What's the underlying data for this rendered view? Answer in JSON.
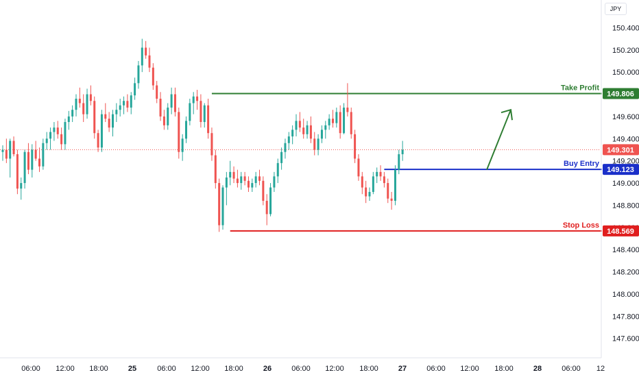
{
  "currency": "JPY",
  "chart_data": {
    "type": "candlestick",
    "title": "",
    "ylim": [
      147.45,
      150.6
    ],
    "yticks": [
      150.4,
      150.2,
      150.0,
      149.8,
      149.6,
      149.4,
      149.2,
      149.0,
      148.8,
      148.6,
      148.4,
      148.2,
      148.0,
      147.8,
      147.6
    ],
    "xticks": [
      "06:00",
      "12:00",
      "18:00",
      "25",
      "06:00",
      "12:00",
      "18:00",
      "26",
      "06:00",
      "12:00",
      "18:00",
      "27",
      "06:00",
      "12:00",
      "18:00",
      "28",
      "06:00",
      "12"
    ],
    "bold_xticks": [
      "25",
      "26",
      "27",
      "28"
    ],
    "current_price": "149.301",
    "current_value": 149.301,
    "levels": [
      {
        "name": "Take Profit",
        "value": 149.806,
        "label": "Take Profit",
        "tag": "149.806",
        "color": "#2e7d32"
      },
      {
        "name": "Buy Entry",
        "value": 149.123,
        "label": "Buy Entry",
        "tag": "149.123",
        "color": "#1a2fc9"
      },
      {
        "name": "Stop Loss",
        "value": 148.569,
        "label": "Stop Loss",
        "tag": "148.569",
        "color": "#e01e1e"
      }
    ],
    "arrow": {
      "direction": "up",
      "from": 149.12,
      "to": 149.66
    },
    "colors": {
      "up": "#26a69a",
      "down": "#ef5350"
    },
    "candles": [
      [
        149.28,
        149.34,
        149.2,
        149.3
      ],
      [
        149.3,
        149.4,
        149.18,
        149.22
      ],
      [
        149.22,
        149.4,
        149.05,
        149.38
      ],
      [
        149.38,
        149.42,
        149.24,
        149.26
      ],
      [
        149.26,
        149.3,
        148.9,
        148.95
      ],
      [
        148.95,
        149.05,
        148.85,
        149.0
      ],
      [
        149.0,
        149.3,
        148.95,
        149.28
      ],
      [
        149.28,
        149.36,
        149.08,
        149.12
      ],
      [
        149.12,
        149.35,
        149.05,
        149.3
      ],
      [
        149.3,
        149.38,
        149.2,
        149.22
      ],
      [
        149.22,
        149.32,
        149.1,
        149.15
      ],
      [
        149.15,
        149.4,
        149.12,
        149.36
      ],
      [
        149.36,
        149.46,
        149.3,
        149.4
      ],
      [
        149.4,
        149.5,
        149.3,
        149.46
      ],
      [
        149.46,
        149.55,
        149.38,
        149.5
      ],
      [
        149.5,
        149.56,
        149.4,
        149.44
      ],
      [
        149.44,
        149.5,
        149.3,
        149.35
      ],
      [
        149.35,
        149.58,
        149.3,
        149.55
      ],
      [
        149.55,
        149.65,
        149.48,
        149.6
      ],
      [
        149.6,
        149.7,
        149.55,
        149.66
      ],
      [
        149.66,
        149.8,
        149.6,
        149.76
      ],
      [
        149.76,
        149.86,
        149.68,
        149.72
      ],
      [
        149.72,
        149.8,
        149.55,
        149.62
      ],
      [
        149.62,
        149.85,
        149.58,
        149.8
      ],
      [
        149.8,
        149.88,
        149.7,
        149.74
      ],
      [
        149.74,
        149.78,
        149.4,
        149.45
      ],
      [
        149.45,
        149.48,
        149.28,
        149.32
      ],
      [
        149.32,
        149.66,
        149.28,
        149.62
      ],
      [
        149.62,
        149.72,
        149.55,
        149.58
      ],
      [
        149.58,
        149.64,
        149.46,
        149.5
      ],
      [
        149.5,
        149.66,
        149.42,
        149.62
      ],
      [
        149.62,
        149.72,
        149.55,
        149.66
      ],
      [
        149.66,
        149.76,
        149.6,
        149.7
      ],
      [
        149.7,
        149.78,
        149.62,
        149.74
      ],
      [
        149.74,
        149.8,
        149.64,
        149.68
      ],
      [
        149.68,
        149.82,
        149.62,
        149.79
      ],
      [
        149.79,
        149.95,
        149.75,
        149.9
      ],
      [
        149.9,
        150.1,
        149.85,
        150.06
      ],
      [
        150.06,
        150.3,
        150.0,
        150.22
      ],
      [
        150.22,
        150.28,
        150.12,
        150.15
      ],
      [
        150.15,
        150.22,
        150.0,
        150.04
      ],
      [
        150.04,
        150.08,
        149.84,
        149.88
      ],
      [
        149.88,
        149.92,
        149.72,
        149.76
      ],
      [
        149.76,
        149.82,
        149.56,
        149.6
      ],
      [
        149.6,
        149.66,
        149.48,
        149.52
      ],
      [
        149.52,
        149.72,
        149.48,
        149.68
      ],
      [
        149.68,
        149.86,
        149.62,
        149.8
      ],
      [
        149.8,
        149.86,
        149.6,
        149.64
      ],
      [
        149.64,
        149.68,
        149.22,
        149.28
      ],
      [
        149.28,
        149.44,
        149.2,
        149.4
      ],
      [
        149.4,
        149.6,
        149.36,
        149.56
      ],
      [
        149.56,
        149.76,
        149.52,
        149.72
      ],
      [
        149.72,
        149.82,
        149.62,
        149.78
      ],
      [
        149.78,
        149.84,
        149.66,
        149.74
      ],
      [
        149.74,
        149.8,
        149.5,
        149.55
      ],
      [
        149.55,
        149.72,
        149.5,
        149.7
      ],
      [
        149.7,
        149.76,
        149.4,
        149.45
      ],
      [
        149.45,
        149.5,
        149.2,
        149.25
      ],
      [
        149.25,
        149.3,
        148.95,
        149.0
      ],
      [
        149.0,
        149.04,
        148.56,
        148.62
      ],
      [
        148.62,
        148.98,
        148.58,
        148.96
      ],
      [
        148.96,
        149.1,
        148.8,
        149.05
      ],
      [
        149.05,
        149.2,
        148.98,
        149.1
      ],
      [
        149.1,
        149.15,
        149.0,
        149.04
      ],
      [
        149.04,
        149.12,
        148.96,
        149.0
      ],
      [
        149.0,
        149.1,
        148.94,
        149.06
      ],
      [
        149.06,
        149.1,
        148.98,
        149.02
      ],
      [
        149.02,
        149.06,
        148.92,
        148.96
      ],
      [
        148.96,
        149.04,
        148.92,
        149.0
      ],
      [
        149.0,
        149.1,
        148.96,
        149.06
      ],
      [
        149.06,
        149.12,
        148.98,
        149.02
      ],
      [
        149.02,
        149.06,
        148.8,
        148.84
      ],
      [
        148.84,
        148.9,
        148.62,
        148.72
      ],
      [
        148.72,
        149.0,
        148.7,
        148.96
      ],
      [
        148.96,
        149.1,
        148.92,
        149.06
      ],
      [
        149.06,
        149.22,
        149.0,
        149.18
      ],
      [
        149.18,
        149.32,
        149.12,
        149.28
      ],
      [
        149.28,
        149.4,
        149.22,
        149.36
      ],
      [
        149.36,
        149.46,
        149.3,
        149.42
      ],
      [
        149.42,
        149.52,
        149.35,
        149.48
      ],
      [
        149.48,
        149.62,
        149.42,
        149.56
      ],
      [
        149.56,
        149.64,
        149.46,
        149.5
      ],
      [
        149.5,
        149.58,
        149.4,
        149.44
      ],
      [
        149.44,
        149.56,
        149.4,
        149.52
      ],
      [
        149.52,
        149.6,
        149.36,
        149.4
      ],
      [
        149.4,
        149.46,
        149.25,
        149.3
      ],
      [
        149.3,
        149.44,
        149.25,
        149.4
      ],
      [
        149.4,
        149.52,
        149.36,
        149.48
      ],
      [
        149.48,
        149.56,
        149.4,
        149.52
      ],
      [
        149.52,
        149.62,
        149.48,
        149.58
      ],
      [
        149.58,
        149.66,
        149.5,
        149.54
      ],
      [
        149.54,
        149.68,
        149.5,
        149.64
      ],
      [
        149.64,
        149.7,
        149.4,
        149.45
      ],
      [
        149.45,
        149.72,
        149.44,
        149.68
      ],
      [
        149.68,
        149.9,
        149.6,
        149.64
      ],
      [
        149.64,
        149.68,
        149.4,
        149.44
      ],
      [
        149.44,
        149.48,
        149.18,
        149.22
      ],
      [
        149.22,
        149.26,
        149.02,
        149.06
      ],
      [
        149.06,
        149.1,
        148.9,
        148.96
      ],
      [
        148.96,
        149.02,
        148.82,
        148.88
      ],
      [
        148.88,
        148.96,
        148.84,
        148.92
      ],
      [
        148.92,
        149.1,
        148.9,
        149.06
      ],
      [
        149.06,
        149.14,
        149.0,
        149.1
      ],
      [
        149.1,
        149.16,
        149.02,
        149.06
      ],
      [
        149.06,
        149.1,
        148.96,
        149.0
      ],
      [
        149.0,
        149.04,
        148.82,
        148.86
      ],
      [
        148.86,
        148.92,
        148.76,
        148.84
      ],
      [
        148.84,
        149.16,
        148.8,
        149.12
      ],
      [
        149.12,
        149.3,
        149.08,
        149.26
      ],
      [
        149.26,
        149.38,
        149.2,
        149.3
      ]
    ]
  }
}
